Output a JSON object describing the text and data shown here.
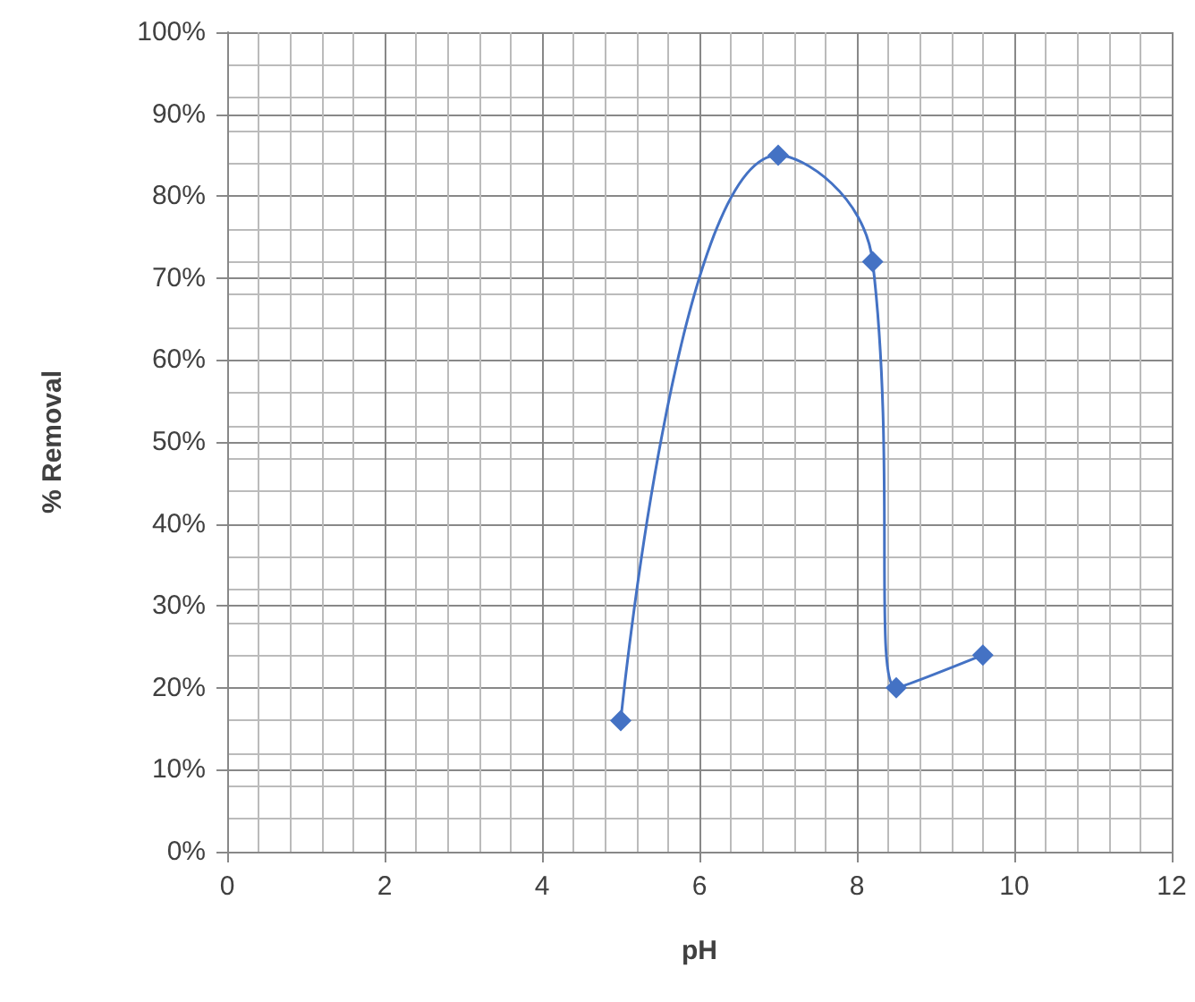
{
  "chart_data": {
    "type": "line",
    "xlabel": "pH",
    "ylabel": "% Removal",
    "x": [
      5,
      7,
      8.2,
      8.5,
      9.6
    ],
    "series": [
      {
        "color": "#4472c4",
        "values": [
          16,
          85,
          72,
          20,
          24
        ]
      }
    ],
    "xlim": [
      0,
      12
    ],
    "xticks": [
      0,
      2,
      4,
      6,
      8,
      10,
      12
    ],
    "ylim": [
      0,
      100
    ],
    "yticks": [
      {
        "value": 0,
        "label": "0%"
      },
      {
        "value": 10,
        "label": "10%"
      },
      {
        "value": 20,
        "label": "20%"
      },
      {
        "value": 30,
        "label": "30%"
      },
      {
        "value": 40,
        "label": "40%"
      },
      {
        "value": 50,
        "label": "50%"
      },
      {
        "value": 60,
        "label": "60%"
      },
      {
        "value": 70,
        "label": "70%"
      },
      {
        "value": 80,
        "label": "80%"
      },
      {
        "value": 90,
        "label": "90%"
      },
      {
        "value": 100,
        "label": "100%"
      }
    ],
    "grid": true,
    "marker": "diamond",
    "line_style": "solid"
  }
}
